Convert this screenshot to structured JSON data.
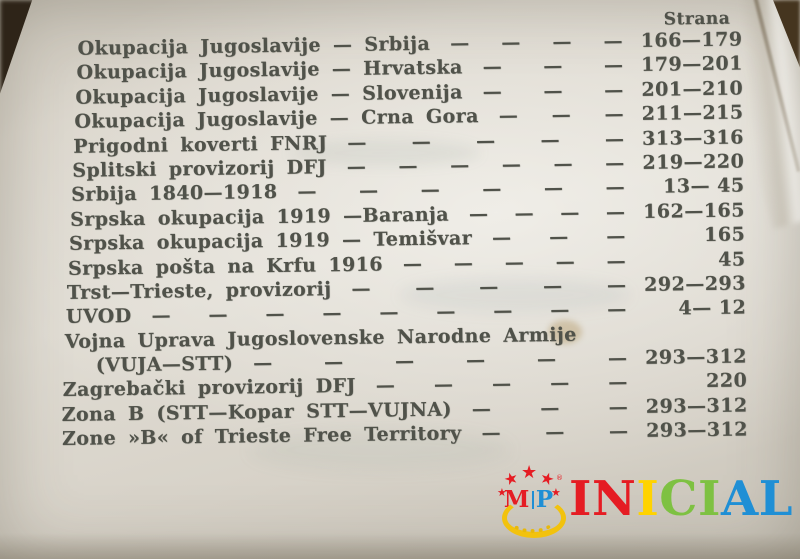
{
  "page": {
    "leader_dash": "—",
    "header": {
      "pages_label": "Strana"
    },
    "rows": [
      {
        "title": "Okupacija Jugoslavije — Srbija",
        "dashes": 4,
        "pages": "166—179"
      },
      {
        "title": "Okupacija Jugoslavije — Hrvatska",
        "dashes": 3,
        "pages": "179—201"
      },
      {
        "title": "Okupacija Jugoslavije — Slovenija",
        "dashes": 3,
        "pages": "201—210"
      },
      {
        "title": "Okupacija Jugoslavije — Crna Gora",
        "dashes": 3,
        "pages": "211—215"
      },
      {
        "title": "Prigodni koverti FNRJ",
        "dashes": 5,
        "pages": "313—316"
      },
      {
        "title": "Splitski provizorij DFJ",
        "dashes": 6,
        "pages": "219—220"
      },
      {
        "title": "Srbija 1840—1918",
        "dashes": 6,
        "pages": "13— 45"
      },
      {
        "title": "Srpska okupacija 1919 —Baranja",
        "dashes": 4,
        "pages": "162—165"
      },
      {
        "title": "Srpska okupacija 1919 — Temišvar",
        "dashes": 3,
        "pages": "165"
      },
      {
        "title": "Srpska pošta na Krfu 1916",
        "dashes": 5,
        "pages": "45"
      },
      {
        "title": "Trst—Trieste, provizorij",
        "dashes": 5,
        "pages": "292—293"
      },
      {
        "title": "UVOD",
        "dashes": 9,
        "pages": "4— 12"
      },
      {
        "title": "Vojna Uprava Jugoslovenske Narodne Armije",
        "dashes": 0,
        "pages": "",
        "style": "wrap"
      },
      {
        "title": "(VUJA—STT)",
        "dashes": 6,
        "pages": "293—312",
        "style": "indent"
      },
      {
        "title": "Zagrebački provizorij DFJ",
        "dashes": 5,
        "pages": "220"
      },
      {
        "title": "Zona B (STT—Kopar STT—VUJNA)",
        "dashes": 3,
        "pages": "293—312"
      },
      {
        "title": "Zone »B« of Trieste Free Territory",
        "dashes": 3,
        "pages": "293—312"
      }
    ]
  },
  "watermark": {
    "emblem": {
      "m": "M",
      "p": "P",
      "star_char": "★",
      "reg_symbol": "®"
    },
    "brand": [
      {
        "ch": "I",
        "color": "#e51c23"
      },
      {
        "ch": "N",
        "color": "#e51c23"
      },
      {
        "ch": "I",
        "color": "#ffd300"
      },
      {
        "ch": "C",
        "color": "#7ec142"
      },
      {
        "ch": "I",
        "color": "#7ec142"
      },
      {
        "ch": "A",
        "color": "#1f8fd5"
      },
      {
        "ch": "L",
        "color": "#1f8fd5"
      }
    ],
    "colors": {
      "star": "#e51c23",
      "wreath": "#f2c20d",
      "m_letter": "#e51c23",
      "p_letter": "#1f8fd5"
    }
  }
}
